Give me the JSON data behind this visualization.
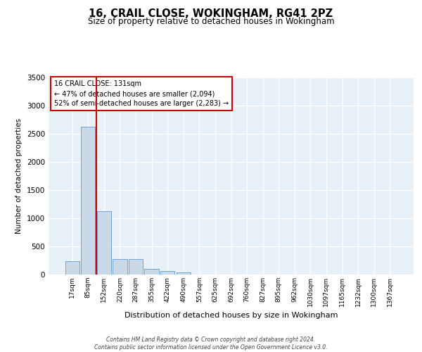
{
  "title_line1": "16, CRAIL CLOSE, WOKINGHAM, RG41 2PZ",
  "title_line2": "Size of property relative to detached houses in Wokingham",
  "xlabel": "Distribution of detached houses by size in Wokingham",
  "ylabel": "Number of detached properties",
  "bar_color": "#c9d9e8",
  "bar_edge_color": "#5b9bd5",
  "bar_categories": [
    "17sqm",
    "85sqm",
    "152sqm",
    "220sqm",
    "287sqm",
    "355sqm",
    "422sqm",
    "490sqm",
    "557sqm",
    "625sqm",
    "692sqm",
    "760sqm",
    "827sqm",
    "895sqm",
    "962sqm",
    "1030sqm",
    "1097sqm",
    "1165sqm",
    "1232sqm",
    "1300sqm",
    "1367sqm"
  ],
  "bar_values": [
    240,
    2620,
    1130,
    270,
    270,
    100,
    60,
    40,
    0,
    0,
    0,
    0,
    0,
    0,
    0,
    0,
    0,
    0,
    0,
    0,
    0
  ],
  "ylim": [
    0,
    3500
  ],
  "yticks": [
    0,
    500,
    1000,
    1500,
    2000,
    2500,
    3000,
    3500
  ],
  "property_line_x": 1.5,
  "property_line_color": "#cc0000",
  "annotation_text": "16 CRAIL CLOSE: 131sqm\n← 47% of detached houses are smaller (2,094)\n52% of semi-detached houses are larger (2,283) →",
  "annotation_box_color": "#ffffff",
  "annotation_box_edge": "#cc0000",
  "footer_text": "Contains HM Land Registry data © Crown copyright and database right 2024.\nContains public sector information licensed under the Open Government Licence v3.0.",
  "background_color": "#e8f0f8",
  "grid_color": "#ffffff"
}
